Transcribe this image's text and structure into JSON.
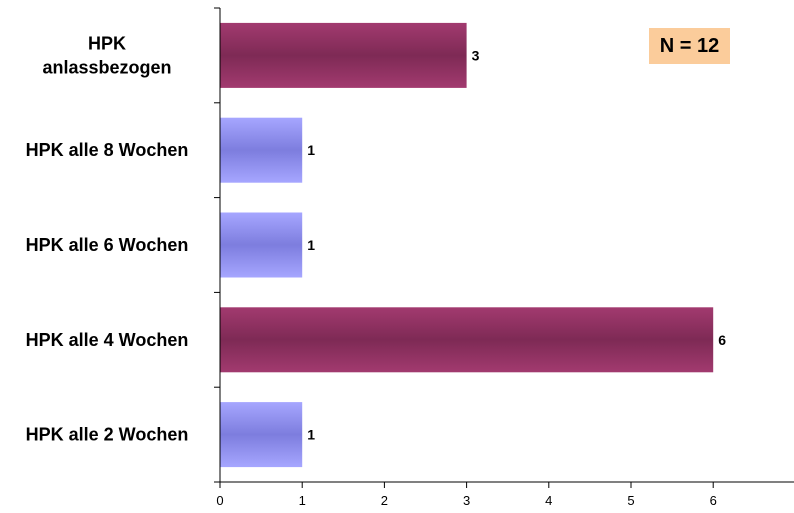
{
  "chart_data": {
    "type": "bar",
    "orientation": "horizontal",
    "categories": [
      [
        "HPK",
        "anlassbezogen"
      ],
      [
        "HPK alle 8 Wochen"
      ],
      [
        "HPK alle 6 Wochen"
      ],
      [
        "HPK alle 4 Wochen"
      ],
      [
        "HPK alle 2 Wochen"
      ]
    ],
    "values": [
      3,
      1,
      1,
      6,
      1
    ],
    "bar_colors": [
      "#8b2d5e",
      "#8f8ff2",
      "#8f8ff2",
      "#8b2d5e",
      "#8f8ff2"
    ],
    "xlim": [
      0,
      7
    ],
    "xticks": [
      0,
      1,
      2,
      3,
      4,
      5,
      6
    ],
    "grid": false,
    "annotation": "N = 12",
    "annotation_color": "#fbcc9b"
  }
}
